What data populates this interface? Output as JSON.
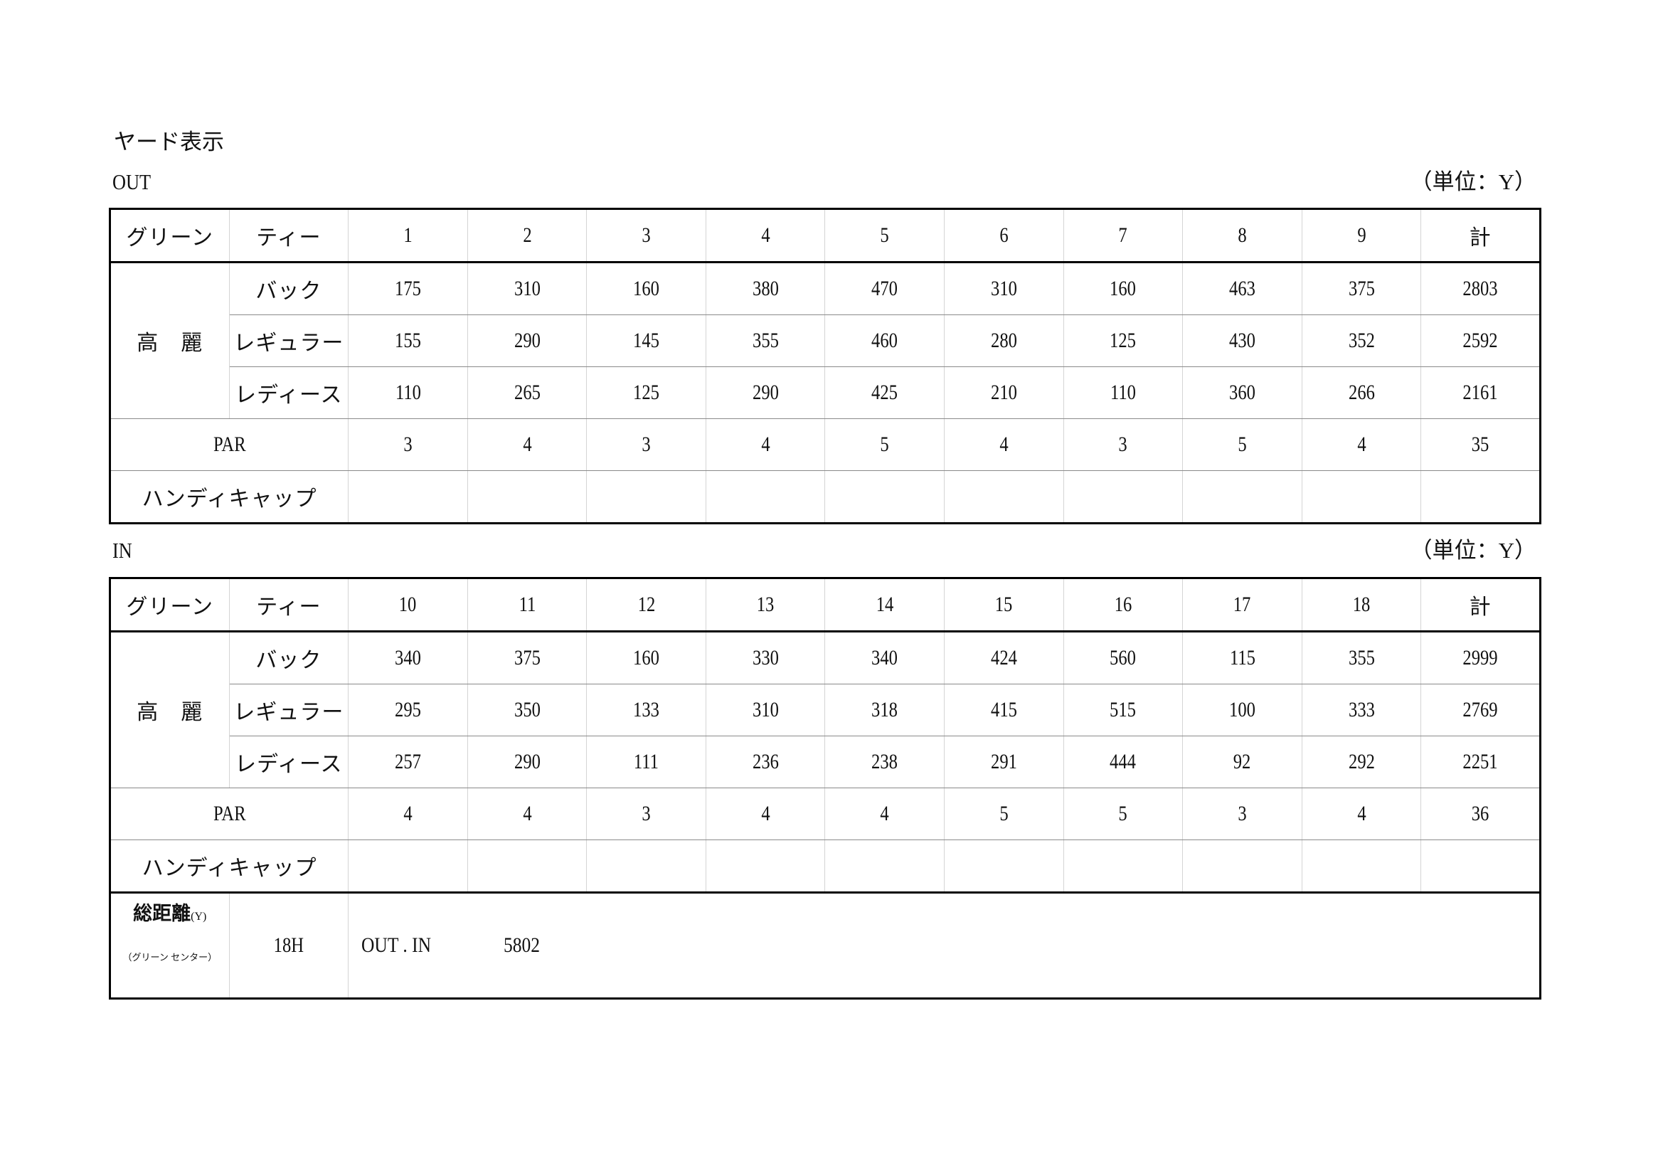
{
  "title": "ヤード表示",
  "unit_label": "（単位：Y）",
  "green_name": "高　麗",
  "header_labels": {
    "green": "グリーン",
    "tee": "ティー",
    "total": "計"
  },
  "tee_names": [
    "バック",
    "レギュラー",
    "レディース"
  ],
  "par_label": "PAR",
  "handicap_label": "ハンディキャップ",
  "out": {
    "label": "OUT",
    "holes": [
      "1",
      "2",
      "3",
      "4",
      "5",
      "6",
      "7",
      "8",
      "9"
    ],
    "yards": [
      {
        "tee": "バック",
        "values": [
          "175",
          "310",
          "160",
          "380",
          "470",
          "310",
          "160",
          "463",
          "375"
        ],
        "total": "2803"
      },
      {
        "tee": "レギュラー",
        "values": [
          "155",
          "290",
          "145",
          "355",
          "460",
          "280",
          "125",
          "430",
          "352"
        ],
        "total": "2592"
      },
      {
        "tee": "レディース",
        "values": [
          "110",
          "265",
          "125",
          "290",
          "425",
          "210",
          "110",
          "360",
          "266"
        ],
        "total": "2161"
      }
    ],
    "par": [
      "3",
      "4",
      "3",
      "4",
      "5",
      "4",
      "3",
      "5",
      "4"
    ],
    "par_total": "35"
  },
  "in": {
    "label": "IN",
    "holes": [
      "10",
      "11",
      "12",
      "13",
      "14",
      "15",
      "16",
      "17",
      "18"
    ],
    "yards": [
      {
        "tee": "バック",
        "values": [
          "340",
          "375",
          "160",
          "330",
          "340",
          "424",
          "560",
          "115",
          "355"
        ],
        "total": "2999"
      },
      {
        "tee": "レギュラー",
        "values": [
          "295",
          "350",
          "133",
          "310",
          "318",
          "415",
          "515",
          "100",
          "333"
        ],
        "total": "2769"
      },
      {
        "tee": "レディース",
        "values": [
          "257",
          "290",
          "111",
          "236",
          "238",
          "291",
          "444",
          "92",
          "292"
        ],
        "total": "2251"
      }
    ],
    "par": [
      "4",
      "4",
      "3",
      "4",
      "4",
      "5",
      "5",
      "3",
      "4"
    ],
    "par_total": "36"
  },
  "total_distance": {
    "label": "総距離",
    "unit": "(Y)",
    "note": "（グリーン センター）",
    "holes": "18H",
    "scope": "OUT . IN",
    "value": "5802"
  }
}
